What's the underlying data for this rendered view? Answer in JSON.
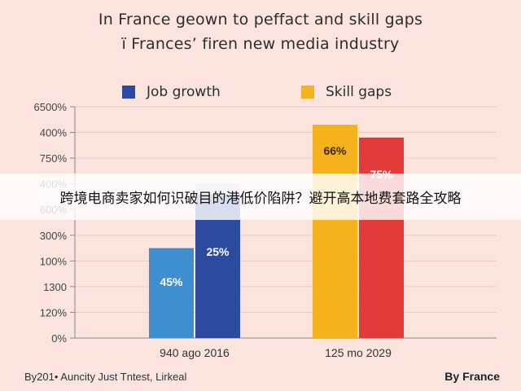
{
  "title_line1": "In France geown to peffact and skill gaps",
  "title_line2": "ï Frances’ firen new media industry",
  "banner_text": "跨境电商卖家如何识破目的港低价陷阱？避开高本地费套路全攻略",
  "footer_left": "By201• Auncity Just Tntest, Lirkeal",
  "footer_right": "By France",
  "legend": [
    {
      "label": "Job growth",
      "color": "#2c4a9e"
    },
    {
      "label": "Skill gaps",
      "color": "#f5b21d"
    }
  ],
  "chart_data": {
    "type": "bar",
    "y_tick_labels": [
      "6500%",
      "400%",
      "750%",
      "400%",
      "600%",
      "300%",
      "100%",
      "1300",
      "120%",
      "0%"
    ],
    "grid": true,
    "groups": [
      {
        "label": "940 ago 2016",
        "bars": [
          {
            "series": "Job growth",
            "color": "#3d8fd0",
            "level": 3.5,
            "label": "45%"
          },
          {
            "series": "Job growth",
            "color": "#2c4a9e",
            "level": 6.0,
            "label": "25%"
          }
        ]
      },
      {
        "label": "125 mo 2029",
        "bars": [
          {
            "series": "Skill gaps",
            "color": "#f5b21d",
            "level": 8.3,
            "label": "66%"
          },
          {
            "series": "Skill gaps",
            "color": "#e23b3a",
            "level": 7.8,
            "label": "75%"
          }
        ]
      }
    ]
  }
}
